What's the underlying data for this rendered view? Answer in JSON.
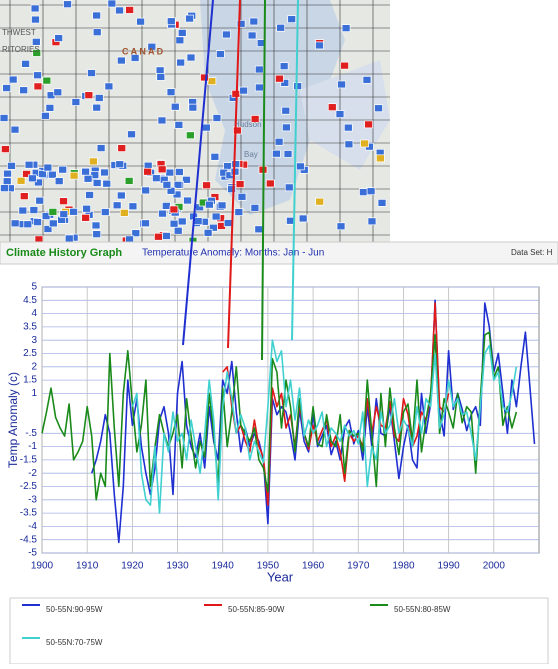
{
  "map": {
    "labels": [
      "THWEST",
      "RITORIES",
      "C A N A D",
      "Hudson",
      "Bay"
    ]
  },
  "header": {
    "title": "Climate History Graph",
    "subtitle": "Temperature Anomaly: Months: Jan - Jun",
    "dataset": "Data Set: H"
  },
  "chart_data": {
    "type": "line",
    "ylabel": "Temp Anomaly (c)",
    "xlabel": "Year",
    "xlim": [
      1900,
      2010
    ],
    "xticks": [
      1900,
      1910,
      1920,
      1930,
      1940,
      1950,
      1960,
      1970,
      1980,
      1990,
      2000
    ],
    "ylim": [
      -5,
      5
    ],
    "yticks": [
      5,
      4.5,
      4,
      3.5,
      3,
      2.5,
      2,
      1.5,
      1,
      {
        "value": -0.5,
        "label": "-.5"
      },
      -1,
      -1.5,
      -2,
      -2.5,
      -3,
      -3.5,
      -4,
      -4.5,
      -5
    ],
    "grid": true,
    "x": [
      1900,
      1901,
      1902,
      1903,
      1904,
      1905,
      1906,
      1907,
      1908,
      1909,
      1910,
      1911,
      1912,
      1913,
      1914,
      1915,
      1916,
      1917,
      1918,
      1919,
      1920,
      1921,
      1922,
      1923,
      1924,
      1925,
      1926,
      1927,
      1928,
      1929,
      1930,
      1931,
      1932,
      1933,
      1934,
      1935,
      1936,
      1937,
      1938,
      1939,
      1940,
      1941,
      1942,
      1943,
      1944,
      1945,
      1946,
      1947,
      1948,
      1949,
      1950,
      1951,
      1952,
      1953,
      1954,
      1955,
      1956,
      1957,
      1958,
      1959,
      1960,
      1961,
      1962,
      1963,
      1964,
      1965,
      1966,
      1967,
      1968,
      1969,
      1970,
      1971,
      1972,
      1973,
      1974,
      1975,
      1976,
      1977,
      1978,
      1979,
      1980,
      1981,
      1982,
      1983,
      1984,
      1985,
      1986,
      1987,
      1988,
      1989,
      1990,
      1991,
      1992,
      1993,
      1994,
      1995,
      1996,
      1997,
      1998,
      1999,
      2000,
      2001,
      2002,
      2003,
      2004,
      2005,
      2006,
      2007,
      2008,
      2009
    ],
    "series": [
      {
        "name": "50-55N:90-95W",
        "color": "#1f2fd0",
        "values": [
          null,
          null,
          null,
          null,
          null,
          null,
          null,
          null,
          null,
          null,
          null,
          -2.0,
          -1.5,
          -0.8,
          0.2,
          -0.5,
          -2.8,
          -4.6,
          -2.5,
          1.5,
          -0.2,
          0.8,
          -1.0,
          -2.0,
          -2.8,
          -1.8,
          0.0,
          0.5,
          -0.5,
          -2.8,
          1.0,
          2.2,
          -0.2,
          -1.0,
          -1.4,
          -0.5,
          -1.8,
          0.5,
          -0.8,
          -1.5,
          1.5,
          1.0,
          2.2,
          0.3,
          -1.2,
          -0.3,
          -1.0,
          -0.5,
          -0.8,
          -1.5,
          -3.9,
          0.8,
          0.2,
          0.5,
          0.3,
          -0.5,
          -1.5,
          0.4,
          -0.8,
          -1.2,
          0.2,
          -1.0,
          -0.6,
          -0.2,
          -1.3,
          -0.8,
          -1.5,
          -0.3,
          0.0,
          -0.9,
          -0.4,
          -1.5,
          0.5,
          -1.0,
          0.8,
          -0.5,
          -0.6,
          0.5,
          -0.8,
          -2.2,
          -1.0,
          -0.2,
          -1.5,
          -1.8,
          1.0,
          -0.5,
          0.6,
          4.5,
          0.3,
          -0.6,
          2.6,
          0.4,
          1.0,
          0.4,
          -0.4,
          0.2,
          0.5,
          -0.2,
          4.4,
          3.5,
          1.8,
          2.5,
          1.0,
          -0.5,
          1.5,
          0.5,
          2.0,
          3.3,
          1.2,
          -0.9
        ]
      },
      {
        "name": "50-55N:85-90W",
        "color": "#e01818",
        "values": [
          null,
          null,
          null,
          null,
          null,
          null,
          null,
          null,
          null,
          null,
          null,
          null,
          null,
          null,
          null,
          null,
          null,
          null,
          null,
          null,
          null,
          null,
          null,
          null,
          null,
          null,
          null,
          null,
          null,
          null,
          null,
          null,
          null,
          null,
          null,
          null,
          null,
          null,
          null,
          null,
          1.8,
          2.0,
          0.5,
          -0.5,
          -0.2,
          -0.8,
          -1.2,
          0.0,
          -1.0,
          -1.4,
          -3.2,
          1.2,
          0.5,
          1.0,
          -0.3,
          0.2,
          -1.0,
          0.6,
          -0.5,
          -1.1,
          -0.2,
          -0.8,
          -0.4,
          0.0,
          -1.0,
          -0.6,
          -1.2,
          -2.3,
          -0.5,
          -0.8,
          -0.6,
          -1.0,
          0.8,
          -0.5,
          0.5,
          -0.2,
          -0.3,
          0.7,
          -0.6,
          -0.8,
          0.8,
          0.2,
          -1.0,
          -0.6,
          0.3,
          0.0,
          0.8,
          4.4,
          0.5,
          0.3,
          1.0,
          null,
          null,
          null,
          null,
          null,
          null,
          null,
          null,
          null,
          null,
          null,
          null,
          null,
          null,
          null,
          null,
          null,
          null,
          null
        ]
      },
      {
        "name": "50-55N:80-85W",
        "color": "#1a8a1a",
        "values": [
          -0.5,
          0.3,
          1.2,
          0.1,
          -0.3,
          -0.6,
          0.6,
          -1.5,
          -1.2,
          -0.8,
          0.5,
          -0.6,
          -3.0,
          -2.0,
          -2.5,
          2.5,
          -0.3,
          -2.5,
          1.0,
          2.6,
          0.6,
          -1.2,
          -0.2,
          1.5,
          -2.5,
          -1.0,
          0.2,
          -0.5,
          -1.0,
          -0.5,
          0.2,
          -1.8,
          0.8,
          -0.6,
          -1.8,
          -0.8,
          -1.4,
          1.0,
          -0.5,
          -2.4,
          1.2,
          -1.0,
          0.3,
          2.0,
          -0.2,
          -0.5,
          -0.8,
          -0.3,
          -1.5,
          -1.8,
          -2.7,
          2.3,
          1.8,
          -0.3,
          1.5,
          0.5,
          -1.2,
          0.8,
          -0.5,
          -1.0,
          0.5,
          -0.9,
          -1.0,
          0.2,
          -0.8,
          -1.0,
          0.2,
          -2.0,
          -0.4,
          -0.6,
          -0.5,
          -1.2,
          1.5,
          -0.5,
          -2.5,
          1.0,
          -1.0,
          1.2,
          -0.3,
          -1.3,
          0.3,
          0.6,
          -0.8,
          1.5,
          -1.2,
          0.0,
          1.0,
          3.2,
          -0.5,
          0.8,
          0.3,
          -0.3,
          1.0,
          -0.1,
          0.5,
          0.3,
          -2.0,
          0.8,
          3.2,
          3.3,
          1.6,
          2.0,
          -0.2,
          0.5,
          -0.3,
          0.3,
          null,
          null,
          null,
          null
        ]
      },
      {
        "name": "50-55N:70-75W",
        "color": "#40d0d0",
        "values": [
          null,
          null,
          null,
          null,
          null,
          null,
          null,
          null,
          null,
          null,
          null,
          null,
          null,
          null,
          null,
          null,
          null,
          null,
          null,
          null,
          0.5,
          1.0,
          -2.0,
          -3.0,
          -3.2,
          -1.0,
          -3.5,
          -0.5,
          -1.2,
          0.3,
          -0.8,
          -0.5,
          -1.5,
          0.0,
          -1.0,
          -2.0,
          -0.5,
          1.5,
          0.0,
          -3.0,
          0.5,
          1.8,
          0.8,
          -0.5,
          0.2,
          -0.3,
          -1.5,
          -0.8,
          -1.2,
          -1.6,
          0.5,
          3.0,
          2.2,
          2.6,
          0.5,
          1.5,
          0.0,
          1.2,
          -0.6,
          0.0,
          -0.5,
          -0.2,
          0.3,
          -1.0,
          -0.3,
          -0.5,
          -0.8,
          -0.2,
          -0.6,
          -0.4,
          -0.9,
          0.3,
          -2.5,
          -1.0,
          -1.5,
          0.3,
          -0.5,
          -0.2,
          0.8,
          -0.5,
          0.0,
          -0.3,
          -1.0,
          0.5,
          -0.5,
          0.8,
          0.5,
          2.5,
          -0.3,
          0.2,
          1.5,
          0.5,
          0.8,
          0.2,
          0.3,
          -0.5,
          -1.5,
          0.5,
          2.5,
          2.8,
          1.5,
          1.8,
          0.5,
          0.3,
          1.0,
          2.0,
          null,
          null,
          null,
          null
        ]
      }
    ]
  }
}
